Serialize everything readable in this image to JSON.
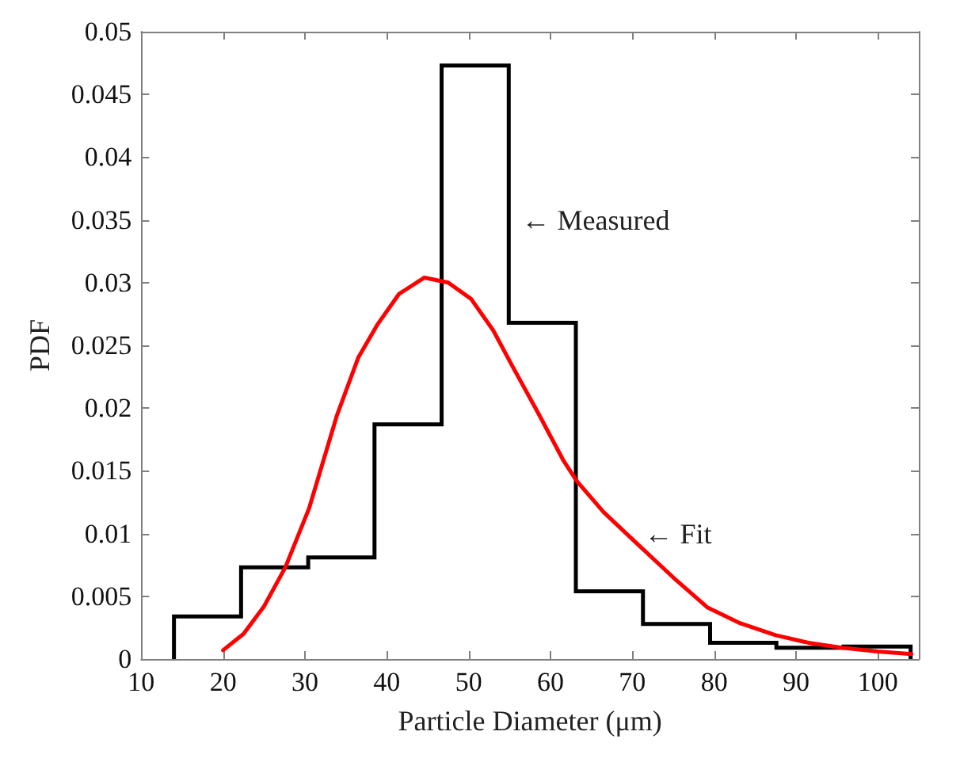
{
  "chart_data": {
    "type": "histogram",
    "xlabel": "Particle Diameter (μm)",
    "ylabel": "PDF",
    "xlim": [
      10,
      105
    ],
    "xticks": [
      10,
      20,
      30,
      40,
      50,
      60,
      70,
      80,
      90,
      100
    ],
    "ylim": [
      0,
      0.05
    ],
    "yticks": [
      0,
      0.005,
      0.01,
      0.015,
      0.02,
      0.025,
      0.03,
      0.035,
      0.04,
      0.045,
      0.05
    ],
    "grid": false,
    "series": [
      {
        "type": "histogram",
        "color": "#000000",
        "bins": [
          14,
          22.2,
          30.4,
          38.5,
          46.7,
          54.9,
          63.1,
          71.3,
          79.5,
          87.6,
          95.8,
          104
        ],
        "values": [
          0.0034,
          0.0073,
          0.0081,
          0.0187,
          0.0473,
          0.0268,
          0.0054,
          0.0028,
          0.0013,
          0.0009,
          0.001
        ]
      },
      {
        "type": "line",
        "color": "#ff0000",
        "x": [
          20,
          22.5,
          25,
          27.6,
          30.5,
          33.9,
          36.5,
          38.9,
          41.5,
          44.6,
          47.5,
          50.3,
          53,
          55.3,
          58.5,
          61.6,
          63.2,
          66.5,
          70.4,
          75,
          79.2,
          83,
          87.5,
          91.5,
          95.6,
          100,
          104.1
        ],
        "values": [
          0.0007,
          0.002,
          0.0042,
          0.0073,
          0.012,
          0.0194,
          0.024,
          0.0267,
          0.0291,
          0.0304,
          0.03,
          0.0287,
          0.0262,
          0.0234,
          0.0196,
          0.0158,
          0.0142,
          0.0117,
          0.0093,
          0.0065,
          0.0041,
          0.0029,
          0.0019,
          0.0013,
          0.0009,
          0.0006,
          0.0004
        ]
      }
    ],
    "annotations": [
      {
        "text": "← Measured",
        "x": 55.5,
        "y": 0.035
      },
      {
        "text": "← Fit",
        "x": 70.5,
        "y": 0.01
      }
    ]
  }
}
